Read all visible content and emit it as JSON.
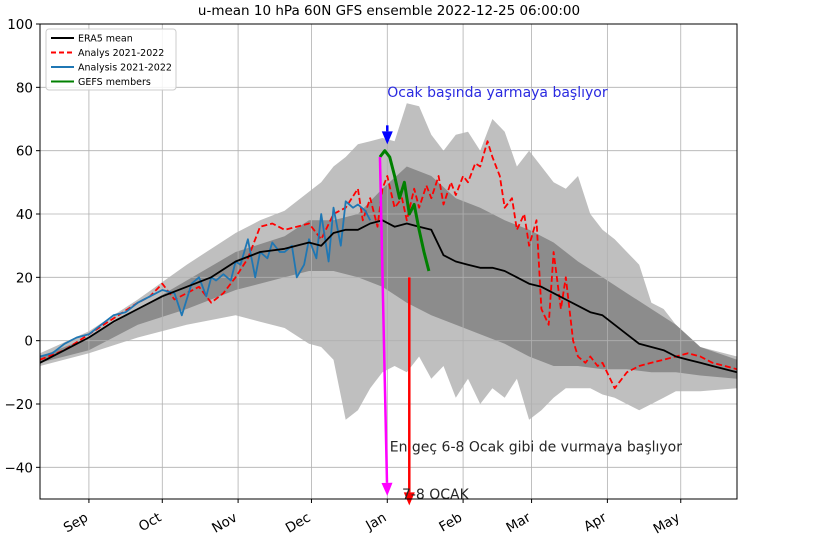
{
  "chart_data": {
    "type": "line",
    "title": "u-mean 10 hPa 60N GFS ensemble 2022-12-25 06:00:00",
    "xlabel": "",
    "ylabel": "",
    "ylim": [
      -50,
      100
    ],
    "yticks": [
      100,
      80,
      60,
      40,
      20,
      0,
      -20,
      -40
    ],
    "x_unit": "days since Aug 20",
    "xlim": [
      0,
      285
    ],
    "xticks": [
      {
        "label": "Sep",
        "x": 20
      },
      {
        "label": "Oct",
        "x": 50
      },
      {
        "label": "Nov",
        "x": 81
      },
      {
        "label": "Dec",
        "x": 111
      },
      {
        "label": "Jan",
        "x": 142
      },
      {
        "label": "Feb",
        "x": 173
      },
      {
        "label": "Mar",
        "x": 201
      },
      {
        "label": "Apr",
        "x": 232
      },
      {
        "label": "May",
        "x": 262
      }
    ],
    "grid": true,
    "legend_position": "top-left",
    "legend": [
      {
        "label": "ERA5 mean",
        "color": "#000000",
        "style": "solid"
      },
      {
        "label": "Analys 2021-2022",
        "color": "#ff0000",
        "style": "dashed"
      },
      {
        "label": "Analysis 2021-2022",
        "color": "#1f77b4",
        "style": "solid"
      },
      {
        "label": "GEFS members",
        "color": "#008000",
        "style": "solid"
      }
    ],
    "outer_band": {
      "color": "#bfbfbf",
      "x": [
        0,
        20,
        40,
        60,
        80,
        90,
        100,
        110,
        115,
        120,
        125,
        130,
        135,
        140,
        145,
        150,
        155,
        160,
        165,
        170,
        175,
        180,
        185,
        190,
        195,
        200,
        205,
        210,
        215,
        220,
        225,
        230,
        235,
        240,
        245,
        250,
        255,
        260,
        270,
        285
      ],
      "upper": [
        -4,
        3,
        13,
        24,
        34,
        38,
        41,
        47,
        50,
        55,
        58,
        62,
        63,
        64,
        63,
        75,
        74,
        65,
        60,
        65,
        66,
        60,
        70,
        66,
        55,
        60,
        55,
        50,
        48,
        52,
        40,
        35,
        32,
        28,
        24,
        12,
        10,
        5,
        -2,
        -5
      ],
      "lower": [
        -8,
        -4,
        1,
        5,
        8,
        6,
        4,
        -1,
        -2,
        -6,
        -25,
        -22,
        -15,
        -10,
        -8,
        -10,
        -5,
        -12,
        -8,
        -18,
        -12,
        -20,
        -15,
        -18,
        -12,
        -25,
        -22,
        -18,
        -15,
        -15,
        -15,
        -17,
        -18,
        -20,
        -22,
        -20,
        -18,
        -16,
        -16,
        -15
      ]
    },
    "inner_band": {
      "color": "#8c8c8c",
      "x": [
        0,
        20,
        40,
        60,
        80,
        100,
        110,
        120,
        130,
        140,
        150,
        160,
        170,
        180,
        190,
        200,
        210,
        220,
        230,
        240,
        250,
        260,
        270,
        285
      ],
      "upper": [
        -5,
        1,
        10,
        19,
        28,
        33,
        38,
        38,
        40,
        48,
        55,
        52,
        45,
        42,
        38,
        35,
        31,
        25,
        20,
        15,
        10,
        5,
        -2,
        -6
      ],
      "lower": [
        -7,
        -3,
        5,
        10,
        16,
        20,
        22,
        22,
        20,
        17,
        12,
        8,
        5,
        2,
        -1,
        -5,
        -8,
        -8,
        -9,
        -9,
        -10,
        -10,
        -11,
        -12
      ]
    },
    "series": [
      {
        "name": "ERA5 mean",
        "color": "#000000",
        "x": [
          0,
          10,
          20,
          30,
          40,
          50,
          60,
          70,
          80,
          90,
          100,
          110,
          115,
          120,
          125,
          130,
          135,
          140,
          145,
          150,
          155,
          160,
          165,
          170,
          175,
          180,
          185,
          190,
          195,
          200,
          205,
          210,
          215,
          220,
          225,
          230,
          235,
          240,
          245,
          250,
          255,
          260,
          265,
          270,
          275,
          285
        ],
        "values": [
          -7,
          -3,
          1,
          6,
          10,
          14,
          17,
          20,
          25,
          28,
          29,
          31,
          30,
          34,
          35,
          35,
          37,
          38,
          36,
          37,
          36,
          35,
          27,
          25,
          24,
          23,
          23,
          22,
          20,
          18,
          17,
          15,
          13,
          11,
          9,
          8,
          5,
          2,
          -1,
          -2,
          -3,
          -5,
          -6,
          -7,
          -8,
          -10
        ]
      },
      {
        "name": "Analys 2021-2022",
        "color": "#ff0000",
        "dashed": true,
        "x": [
          0,
          10,
          20,
          30,
          40,
          45,
          50,
          55,
          60,
          65,
          70,
          75,
          80,
          85,
          90,
          95,
          100,
          105,
          110,
          115,
          120,
          125,
          130,
          132,
          135,
          138,
          140,
          142,
          145,
          148,
          150,
          153,
          155,
          158,
          160,
          163,
          165,
          168,
          170,
          173,
          175,
          178,
          180,
          183,
          185,
          188,
          190,
          193,
          195,
          198,
          200,
          203,
          205,
          208,
          210,
          213,
          215,
          218,
          220,
          223,
          225,
          228,
          230,
          235,
          240,
          245,
          250,
          255,
          260,
          265,
          270,
          275,
          280,
          285
        ],
        "values": [
          -6,
          -3,
          2,
          7,
          12,
          14,
          18,
          13,
          15,
          17,
          12,
          15,
          20,
          26,
          36,
          37,
          35,
          36,
          37,
          32,
          40,
          42,
          48,
          38,
          45,
          36,
          48,
          52,
          42,
          45,
          38,
          48,
          42,
          49,
          45,
          52,
          43,
          50,
          46,
          52,
          50,
          56,
          55,
          63,
          58,
          52,
          42,
          45,
          35,
          40,
          30,
          38,
          10,
          5,
          28,
          10,
          20,
          0,
          -5,
          -7,
          -5,
          -8,
          -7,
          -15,
          -10,
          -8,
          -7,
          -6,
          -5,
          -4,
          -5,
          -7,
          -8,
          -9
        ]
      },
      {
        "name": "Analysis 2021-2022",
        "color": "#1f77b4",
        "x": [
          0,
          5,
          10,
          15,
          20,
          25,
          30,
          35,
          40,
          45,
          50,
          55,
          58,
          62,
          65,
          68,
          70,
          72,
          75,
          78,
          80,
          82,
          85,
          88,
          90,
          93,
          95,
          98,
          100,
          103,
          105,
          108,
          110,
          113,
          115,
          118,
          120,
          123,
          125,
          128,
          130,
          133,
          135
        ],
        "values": [
          -5,
          -4,
          -1,
          1,
          2,
          5,
          8,
          9,
          12,
          14,
          16,
          15,
          8,
          18,
          20,
          14,
          20,
          19,
          21,
          19,
          25,
          24,
          32,
          20,
          28,
          26,
          31,
          28,
          28,
          30,
          20,
          24,
          32,
          26,
          40,
          25,
          42,
          30,
          44,
          42,
          43,
          41,
          38
        ]
      },
      {
        "name": "GEFS members",
        "color": "#008000",
        "x": [
          139,
          141,
          143,
          145,
          147,
          149,
          151,
          153,
          155,
          157,
          159
        ],
        "values": [
          58,
          60,
          58,
          52,
          45,
          50,
          40,
          43,
          35,
          28,
          22
        ]
      }
    ],
    "annotations": [
      {
        "text": "Ocak başında yarmaya başlıyor",
        "color": "#2a2ae0",
        "x": 142,
        "y": 77
      },
      {
        "text": "En geç 6-8  Ocak gibi de vurmaya başlıyor",
        "color": "#262626",
        "x": 143,
        "y": -35
      },
      {
        "text": "7-8 OCAK",
        "color": "#262626",
        "x": 148,
        "y": -50
      }
    ],
    "arrows": [
      {
        "color": "#0000ff",
        "x": 142,
        "y_from": 68,
        "y_to": 62
      },
      {
        "color": "#ff00ff",
        "x_from": 139,
        "y_from": 58,
        "x_to": 142,
        "y_to": -49
      },
      {
        "color": "#ff0000",
        "x_from": 151,
        "y_from": 20,
        "x_to": 151,
        "y_to": -52
      }
    ]
  }
}
